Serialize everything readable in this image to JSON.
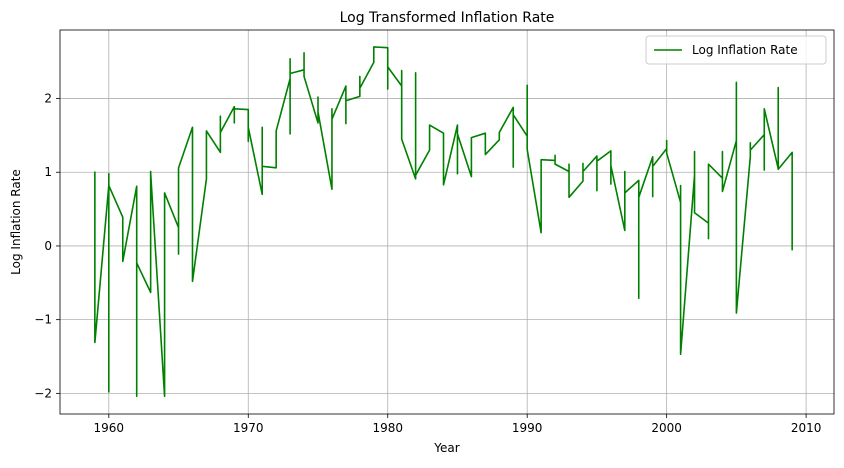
{
  "chart_data": {
    "type": "line",
    "title": "Log Transformed Inflation Rate",
    "xlabel": "Year",
    "ylabel": "Log Inflation Rate",
    "xlim": [
      1956.5,
      2012.0
    ],
    "ylim": [
      -2.28,
      2.93
    ],
    "xticks": [
      1960,
      1970,
      1980,
      1990,
      2000,
      2010
    ],
    "yticks": [
      -2,
      -1,
      0,
      1,
      2
    ],
    "grid": true,
    "legend_position": "top-right",
    "series": [
      {
        "name": "Log Inflation Rate",
        "color": "#008000",
        "points": [
          [
            1959.0,
            1.01
          ],
          [
            1959.0,
            -1.31
          ],
          [
            1960.0,
            0.82
          ],
          [
            1960.0,
            0.98
          ],
          [
            1960.0,
            -1.98
          ],
          [
            1960.0,
            0.82
          ],
          [
            1961.0,
            0.39
          ],
          [
            1961.0,
            -0.21
          ],
          [
            1962.0,
            0.81
          ],
          [
            1962.0,
            -2.04
          ],
          [
            1962.0,
            -0.23
          ],
          [
            1963.0,
            -0.63
          ],
          [
            1963.0,
            1.01
          ],
          [
            1963.0,
            0.99
          ],
          [
            1964.0,
            -2.04
          ],
          [
            1964.0,
            0.72
          ],
          [
            1965.0,
            0.25
          ],
          [
            1965.0,
            -0.11
          ],
          [
            1965.0,
            1.06
          ],
          [
            1966.0,
            1.61
          ],
          [
            1966.0,
            -0.48
          ],
          [
            1967.0,
            0.91
          ],
          [
            1967.0,
            1.56
          ],
          [
            1968.0,
            1.27
          ],
          [
            1968.0,
            1.76
          ],
          [
            1968.0,
            1.54
          ],
          [
            1969.0,
            1.89
          ],
          [
            1969.0,
            1.67
          ],
          [
            1969.0,
            1.86
          ],
          [
            1970.0,
            1.85
          ],
          [
            1970.0,
            1.42
          ],
          [
            1970.0,
            1.61
          ],
          [
            1971.0,
            0.7
          ],
          [
            1971.0,
            1.61
          ],
          [
            1971.0,
            1.08
          ],
          [
            1972.0,
            1.06
          ],
          [
            1972.0,
            1.56
          ],
          [
            1973.0,
            2.27
          ],
          [
            1973.0,
            1.52
          ],
          [
            1973.0,
            2.54
          ],
          [
            1973.0,
            2.34
          ],
          [
            1974.0,
            2.39
          ],
          [
            1974.0,
            2.62
          ],
          [
            1974.0,
            2.3
          ],
          [
            1975.0,
            1.67
          ],
          [
            1975.0,
            2.02
          ],
          [
            1975.0,
            1.82
          ],
          [
            1976.0,
            0.77
          ],
          [
            1976.0,
            1.86
          ],
          [
            1976.0,
            1.72
          ],
          [
            1977.0,
            2.17
          ],
          [
            1977.0,
            1.66
          ],
          [
            1977.0,
            1.97
          ],
          [
            1978.0,
            2.03
          ],
          [
            1978.0,
            2.3
          ],
          [
            1978.0,
            2.14
          ],
          [
            1979.0,
            2.49
          ],
          [
            1979.0,
            2.7
          ],
          [
            1980.0,
            2.69
          ],
          [
            1980.0,
            2.13
          ],
          [
            1980.0,
            2.43
          ],
          [
            1981.0,
            2.17
          ],
          [
            1981.0,
            2.38
          ],
          [
            1981.0,
            1.45
          ],
          [
            1982.0,
            0.91
          ],
          [
            1982.0,
            2.35
          ],
          [
            1982.0,
            0.96
          ],
          [
            1983.0,
            1.3
          ],
          [
            1983.0,
            1.64
          ],
          [
            1984.0,
            1.53
          ],
          [
            1984.0,
            0.83
          ],
          [
            1985.0,
            1.64
          ],
          [
            1985.0,
            0.98
          ],
          [
            1985.0,
            1.52
          ],
          [
            1986.0,
            0.94
          ],
          [
            1986.0,
            1.07
          ],
          [
            1986.0,
            1.47
          ],
          [
            1987.0,
            1.53
          ],
          [
            1987.0,
            1.24
          ],
          [
            1988.0,
            1.44
          ],
          [
            1988.0,
            1.54
          ],
          [
            1989.0,
            1.88
          ],
          [
            1989.0,
            1.07
          ],
          [
            1989.0,
            1.78
          ],
          [
            1990.0,
            1.49
          ],
          [
            1990.0,
            2.18
          ],
          [
            1990.0,
            1.31
          ],
          [
            1991.0,
            0.18
          ],
          [
            1991.0,
            1.17
          ],
          [
            1992.0,
            1.16
          ],
          [
            1992.0,
            1.23
          ],
          [
            1992.0,
            1.11
          ],
          [
            1993.0,
            1.01
          ],
          [
            1993.0,
            1.11
          ],
          [
            1993.0,
            0.66
          ],
          [
            1994.0,
            0.88
          ],
          [
            1994.0,
            1.12
          ],
          [
            1994.0,
            1.01
          ],
          [
            1995.0,
            1.22
          ],
          [
            1995.0,
            0.75
          ],
          [
            1995.0,
            1.15
          ],
          [
            1996.0,
            1.29
          ],
          [
            1996.0,
            0.84
          ],
          [
            1996.0,
            1.09
          ],
          [
            1997.0,
            0.21
          ],
          [
            1997.0,
            1.01
          ],
          [
            1997.0,
            0.72
          ],
          [
            1998.0,
            0.89
          ],
          [
            1998.0,
            -0.71
          ],
          [
            1998.0,
            0.66
          ],
          [
            1999.0,
            1.21
          ],
          [
            1999.0,
            0.67
          ],
          [
            1999.0,
            1.08
          ],
          [
            2000.0,
            1.32
          ],
          [
            2000.0,
            1.43
          ],
          [
            2000.0,
            1.26
          ],
          [
            2001.0,
            0.59
          ],
          [
            2001.0,
            0.82
          ],
          [
            2001.0,
            -1.47
          ],
          [
            2002.0,
            0.96
          ],
          [
            2002.0,
            1.28
          ],
          [
            2002.0,
            0.45
          ],
          [
            2003.0,
            0.31
          ],
          [
            2003.0,
            0.1
          ],
          [
            2003.0,
            1.11
          ],
          [
            2004.0,
            0.92
          ],
          [
            2004.0,
            1.28
          ],
          [
            2004.0,
            0.74
          ],
          [
            2005.0,
            1.43
          ],
          [
            2005.0,
            2.22
          ],
          [
            2005.0,
            -0.91
          ],
          [
            2006.0,
            1.21
          ],
          [
            2006.0,
            1.4
          ],
          [
            2006.0,
            1.3
          ],
          [
            2007.0,
            1.51
          ],
          [
            2007.0,
            1.03
          ],
          [
            2007.0,
            1.86
          ],
          [
            2008.0,
            1.05
          ],
          [
            2008.0,
            2.15
          ],
          [
            2008.0,
            1.04
          ],
          [
            2009.0,
            1.27
          ],
          [
            2009.0,
            -0.06
          ]
        ]
      }
    ]
  }
}
